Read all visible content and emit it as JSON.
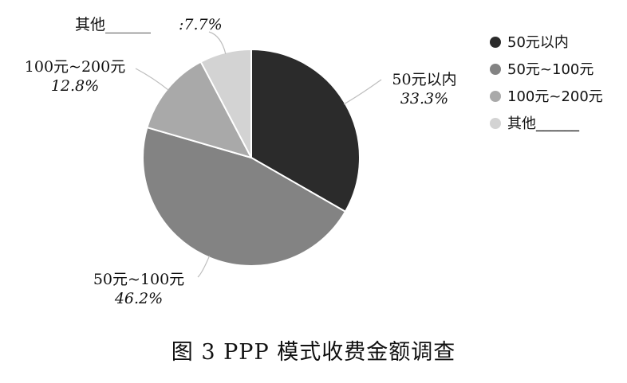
{
  "caption": "图 3    PPP 模式收费金额调查",
  "chart_data": {
    "type": "pie",
    "title": "",
    "slices": [
      {
        "label": "50元以内",
        "value": 33.3,
        "display": "33.3%",
        "color": "#2b2b2b",
        "legend": "50元以内"
      },
      {
        "label": "50元~100元",
        "value": 46.2,
        "display": "46.2%",
        "color": "#838383",
        "legend": "50元~100元"
      },
      {
        "label": "100元~200元",
        "value": 12.8,
        "display": "12.8%",
        "color": "#a9a9a9",
        "legend": "100元~200元"
      },
      {
        "label": "其他______",
        "value": 7.7,
        "display": "7.7%",
        "color": "#d3d3d3",
        "legend": "其他______"
      }
    ],
    "legend_position": "right"
  }
}
